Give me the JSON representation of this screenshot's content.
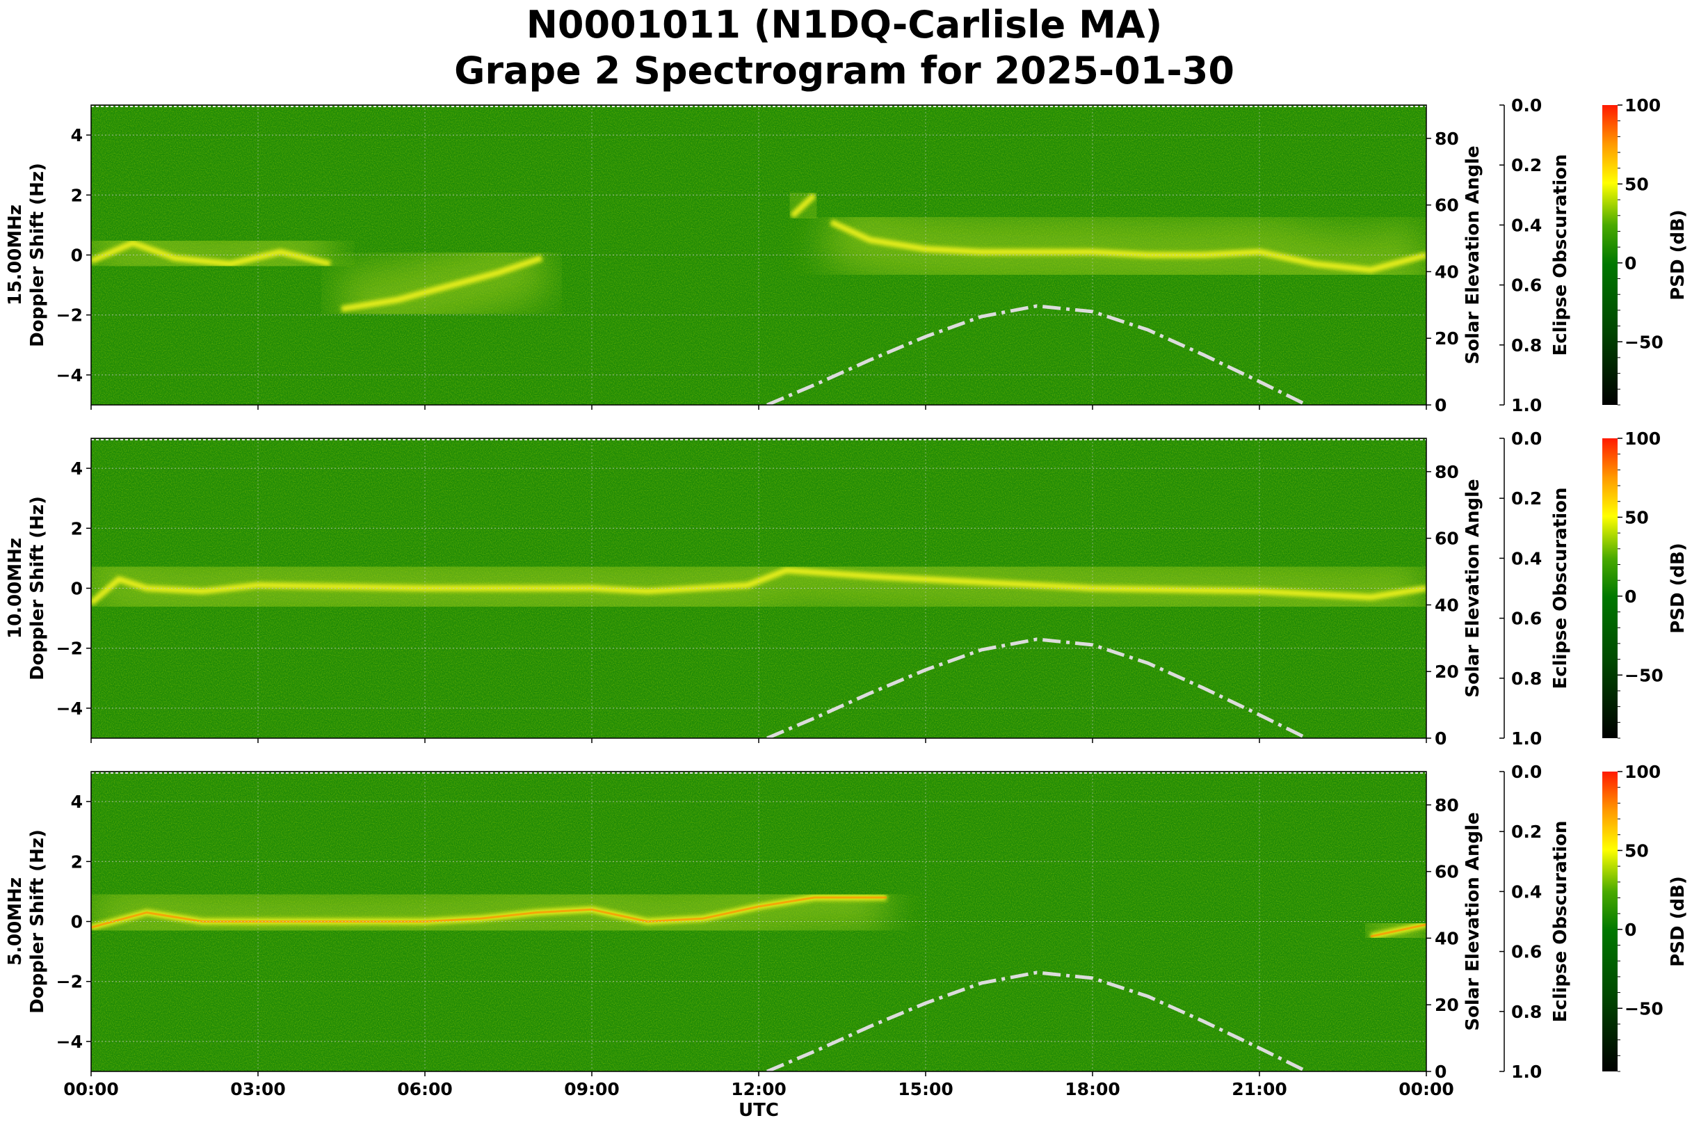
{
  "title_line1": "N0001011 (N1DQ-Carlisle MA)",
  "title_line2": "Grape 2 Spectrogram for 2025-01-30",
  "colors": {
    "background_green": "#1f8a06",
    "trace_yellow": "#f4f41a",
    "trace_orange": "#ff8c00",
    "solar_curve": "#dcdcdc"
  },
  "chart_data": [
    {
      "type": "heatmap",
      "panel_label": "15.00MHz",
      "ylabel": "Doppler Shift (Hz)",
      "ylim": [
        -5,
        5
      ],
      "yticks": [
        "4",
        "2",
        "0",
        "−2",
        "−4"
      ],
      "ytick_values": [
        4,
        2,
        0,
        -2,
        -4
      ],
      "right_axis": {
        "label": "Solar Elevation Angle",
        "ylim": [
          0,
          90
        ],
        "ticks": [
          "0",
          "20",
          "40",
          "60",
          "80"
        ],
        "tick_values": [
          0,
          20,
          40,
          60,
          80
        ]
      },
      "eclipse_axis": {
        "label": "Eclipse Obscuration",
        "ylim": [
          1.0,
          0.0
        ],
        "ticks": [
          "0.0",
          "0.2",
          "0.4",
          "0.6",
          "0.8",
          "1.0"
        ],
        "tick_values": [
          0,
          0.2,
          0.4,
          0.6,
          0.8,
          1.0
        ]
      },
      "colorbar": {
        "label": "PSD (dB)",
        "range": [
          -90,
          100
        ],
        "ticks": [
          "100",
          "50",
          "0",
          "−50"
        ],
        "tick_values": [
          100,
          50,
          0,
          -50
        ]
      },
      "doppler_traces_hz": [
        [
          [
            0,
            -0.2
          ],
          [
            0.75,
            0.4
          ],
          [
            1.5,
            -0.1
          ],
          [
            2.5,
            -0.3
          ],
          [
            3.4,
            0.1
          ],
          [
            4.3,
            -0.3
          ]
        ],
        [
          [
            4.5,
            -1.8
          ],
          [
            5.5,
            -1.5
          ],
          [
            6.5,
            -1.0
          ],
          [
            7.3,
            -0.6
          ],
          [
            8.1,
            -0.1
          ]
        ],
        [
          [
            12.6,
            1.3
          ],
          [
            13.0,
            2.0
          ]
        ],
        [
          [
            13.3,
            1.1
          ],
          [
            14,
            0.5
          ],
          [
            15,
            0.2
          ],
          [
            16,
            0.1
          ],
          [
            17,
            0.1
          ],
          [
            18,
            0.1
          ],
          [
            19,
            0.0
          ],
          [
            20,
            0.0
          ],
          [
            21,
            0.1
          ],
          [
            22,
            -0.3
          ],
          [
            23,
            -0.5
          ],
          [
            24,
            0.0
          ]
        ]
      ],
      "grid": true
    },
    {
      "type": "heatmap",
      "panel_label": "10.00MHz",
      "ylabel": "Doppler Shift (Hz)",
      "ylim": [
        -5,
        5
      ],
      "yticks": [
        "4",
        "2",
        "0",
        "−2",
        "−4"
      ],
      "ytick_values": [
        4,
        2,
        0,
        -2,
        -4
      ],
      "right_axis": {
        "label": "Solar Elevation Angle",
        "ylim": [
          0,
          90
        ],
        "ticks": [
          "0",
          "20",
          "40",
          "60",
          "80"
        ],
        "tick_values": [
          0,
          20,
          40,
          60,
          80
        ]
      },
      "eclipse_axis": {
        "label": "Eclipse Obscuration",
        "ylim": [
          1.0,
          0.0
        ],
        "ticks": [
          "0.0",
          "0.2",
          "0.4",
          "0.6",
          "0.8",
          "1.0"
        ],
        "tick_values": [
          0,
          0.2,
          0.4,
          0.6,
          0.8,
          1.0
        ]
      },
      "colorbar": {
        "label": "PSD (dB)",
        "range": [
          -90,
          100
        ],
        "ticks": [
          "100",
          "50",
          "0",
          "−50"
        ],
        "tick_values": [
          100,
          50,
          0,
          -50
        ]
      },
      "doppler_traces_hz": [
        [
          [
            0,
            -0.5
          ],
          [
            0.5,
            0.3
          ],
          [
            1,
            0.0
          ],
          [
            2,
            -0.1
          ],
          [
            3,
            0.1
          ],
          [
            6,
            0.0
          ],
          [
            9,
            0.0
          ],
          [
            10,
            -0.1
          ],
          [
            11.8,
            0.1
          ],
          [
            12.5,
            0.6
          ],
          [
            14,
            0.4
          ],
          [
            16,
            0.2
          ],
          [
            18,
            0.0
          ],
          [
            21,
            -0.1
          ],
          [
            23,
            -0.3
          ],
          [
            24,
            0.0
          ]
        ]
      ],
      "grid": true
    },
    {
      "type": "heatmap",
      "panel_label": "5.00MHz",
      "ylabel": "Doppler Shift (Hz)",
      "xlabel": "UTC",
      "ylim": [
        -5,
        5
      ],
      "yticks": [
        "4",
        "2",
        "0",
        "−2",
        "−4"
      ],
      "ytick_values": [
        4,
        2,
        0,
        -2,
        -4
      ],
      "right_axis": {
        "label": "Solar Elevation Angle",
        "ylim": [
          0,
          90
        ],
        "ticks": [
          "0",
          "20",
          "40",
          "60",
          "80"
        ],
        "tick_values": [
          0,
          20,
          40,
          60,
          80
        ]
      },
      "eclipse_axis": {
        "label": "Eclipse Obscuration",
        "ylim": [
          1.0,
          0.0
        ],
        "ticks": [
          "0.0",
          "0.2",
          "0.4",
          "0.6",
          "0.8",
          "1.0"
        ],
        "tick_values": [
          0,
          0.2,
          0.4,
          0.6,
          0.8,
          1.0
        ]
      },
      "colorbar": {
        "label": "PSD (dB)",
        "range": [
          -90,
          100
        ],
        "ticks": [
          "100",
          "50",
          "0",
          "−50"
        ],
        "tick_values": [
          100,
          50,
          0,
          -50
        ]
      },
      "doppler_traces_hz": [
        [
          [
            0,
            -0.2
          ],
          [
            1,
            0.3
          ],
          [
            2,
            0.0
          ],
          [
            3,
            0.0
          ],
          [
            4.5,
            0.0
          ],
          [
            6,
            0.0
          ],
          [
            7,
            0.1
          ],
          [
            8,
            0.3
          ],
          [
            9,
            0.4
          ],
          [
            10,
            0.0
          ],
          [
            11,
            0.1
          ],
          [
            12,
            0.5
          ],
          [
            13,
            0.8
          ],
          [
            14.3,
            0.8
          ]
        ],
        [
          [
            23,
            -0.5
          ],
          [
            24,
            -0.1
          ]
        ]
      ],
      "grid": true
    }
  ],
  "shared": {
    "xlim_hours": [
      0,
      24
    ],
    "xticks": [
      "00:00",
      "03:00",
      "06:00",
      "09:00",
      "12:00",
      "15:00",
      "18:00",
      "21:00",
      "00:00"
    ],
    "xtick_hours": [
      0,
      3,
      6,
      9,
      12,
      15,
      18,
      21,
      24
    ],
    "xlabel": "UTC",
    "solar_elevation_deg": {
      "hours": [
        12.15,
        13,
        14,
        15,
        16,
        17,
        18,
        19,
        20,
        21,
        21.85
      ],
      "values": [
        0,
        6,
        13.5,
        20.5,
        26.5,
        29.7,
        28,
        22.5,
        15,
        7,
        0
      ]
    }
  }
}
